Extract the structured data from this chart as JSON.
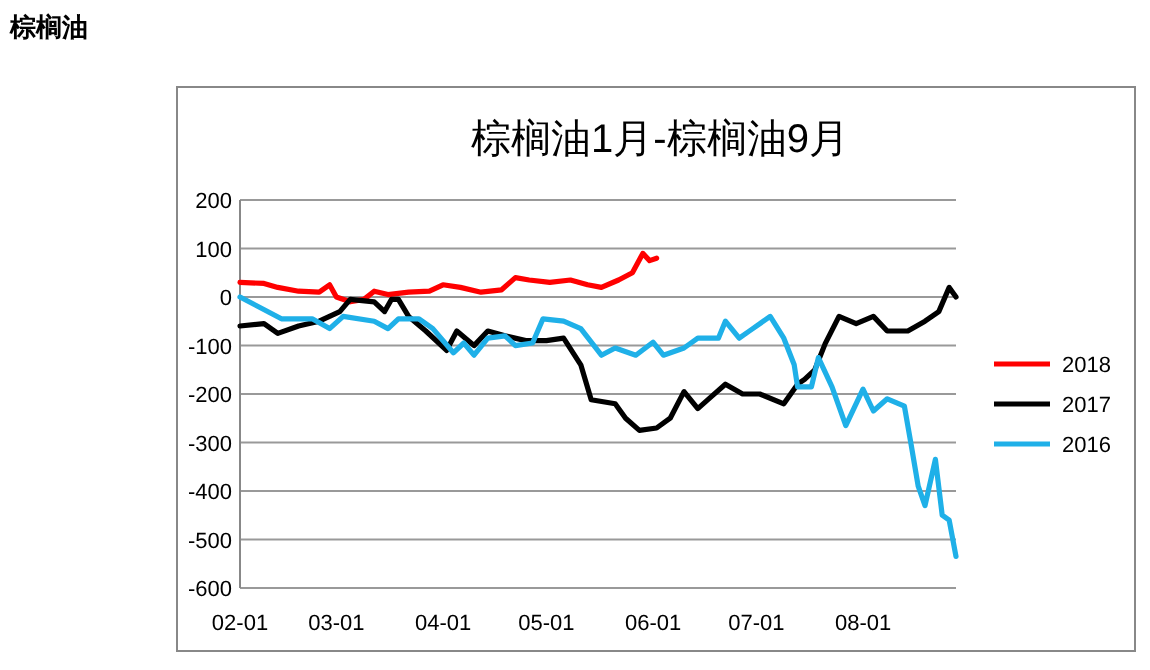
{
  "chart_data": {
    "type": "line",
    "title": "棕榈油1月-棕榈油9月",
    "annotations": [
      "棕榈油"
    ],
    "xlim": [
      "--02-01",
      "--08-28"
    ],
    "xticks": [
      {
        "value": "--02-01",
        "label": "02-01"
      },
      {
        "value": "--03-01",
        "label": "03-01"
      },
      {
        "value": "--04-01",
        "label": "04-01"
      },
      {
        "value": "--05-01",
        "label": "05-01"
      },
      {
        "value": "--06-01",
        "label": "06-01"
      },
      {
        "value": "--07-01",
        "label": "07-01"
      },
      {
        "value": "--08-01",
        "label": "08-01"
      }
    ],
    "ylim": [
      -600,
      200
    ],
    "yticks": [
      -600,
      -500,
      -400,
      -300,
      -200,
      -100,
      0,
      100,
      200
    ],
    "grid": "y",
    "legend": "right",
    "marker": "none",
    "line_style": "solid",
    "series": [
      {
        "name": "2018",
        "color": "#ff0000",
        "x": [
          "--02-01",
          "--02-08",
          "--02-12",
          "--02-18",
          "--02-24",
          "--02-27",
          "--03-01",
          "--03-05",
          "--03-09",
          "--03-12",
          "--03-16",
          "--03-22",
          "--03-28",
          "--04-01",
          "--04-06",
          "--04-12",
          "--04-18",
          "--04-22",
          "--04-26",
          "--05-02",
          "--05-08",
          "--05-13",
          "--05-17",
          "--05-22",
          "--05-26",
          "--05-29",
          "--05-31",
          "--06-02"
        ],
        "values": [
          30,
          28,
          20,
          12,
          10,
          25,
          0,
          -10,
          -5,
          12,
          5,
          10,
          12,
          25,
          20,
          10,
          15,
          40,
          35,
          30,
          35,
          25,
          20,
          35,
          50,
          90,
          75,
          80
        ]
      },
      {
        "name": "2017",
        "color": "#000000",
        "x": [
          "--02-01",
          "--02-08",
          "--02-12",
          "--02-18",
          "--02-24",
          "--03-02",
          "--03-05",
          "--03-12",
          "--03-15",
          "--03-17",
          "--03-19",
          "--03-22",
          "--03-27",
          "--04-02",
          "--04-05",
          "--04-10",
          "--04-14",
          "--04-19",
          "--04-25",
          "--05-01",
          "--05-06",
          "--05-11",
          "--05-14",
          "--05-21",
          "--05-24",
          "--05-28",
          "--06-02",
          "--06-06",
          "--06-10",
          "--06-14",
          "--06-18",
          "--06-22",
          "--06-27",
          "--07-02",
          "--07-09",
          "--07-13",
          "--07-15",
          "--07-18",
          "--07-21",
          "--07-25",
          "--07-30",
          "--08-04",
          "--08-08",
          "--08-14",
          "--08-19",
          "--08-23",
          "--08-26",
          "--08-28"
        ],
        "values": [
          -60,
          -55,
          -75,
          -60,
          -50,
          -30,
          -5,
          -10,
          -30,
          -5,
          -5,
          -40,
          -70,
          -110,
          -70,
          -100,
          -70,
          -80,
          -90,
          -90,
          -85,
          -140,
          -212,
          -220,
          -250,
          -275,
          -270,
          -250,
          -195,
          -230,
          -205,
          -180,
          -200,
          -200,
          -220,
          -180,
          -170,
          -150,
          -96,
          -40,
          -55,
          -40,
          -70,
          -70,
          -50,
          -30,
          20,
          0
        ]
      },
      {
        "name": "2016",
        "color": "#1fb0e8",
        "x": [
          "--02-01",
          "--02-13",
          "--02-22",
          "--02-27",
          "--03-03",
          "--03-12",
          "--03-16",
          "--03-19",
          "--03-25",
          "--03-29",
          "--04-04",
          "--04-07",
          "--04-10",
          "--04-14",
          "--04-19",
          "--04-22",
          "--04-27",
          "--04-30",
          "--05-06",
          "--05-11",
          "--05-17",
          "--05-21",
          "--05-27",
          "--06-01",
          "--06-04",
          "--06-10",
          "--06-14",
          "--06-20",
          "--06-22",
          "--06-26",
          "--06-29",
          "--07-05",
          "--07-09",
          "--07-12",
          "--07-13",
          "--07-17",
          "--07-19",
          "--07-23",
          "--07-27",
          "--08-01",
          "--08-04",
          "--08-08",
          "--08-13",
          "--08-15",
          "--08-17",
          "--08-19",
          "--08-22",
          "--08-24",
          "--08-26",
          "--08-28"
        ],
        "values": [
          0,
          -45,
          -45,
          -65,
          -40,
          -50,
          -65,
          -45,
          -45,
          -65,
          -115,
          -95,
          -120,
          -85,
          -80,
          -100,
          -95,
          -45,
          -50,
          -65,
          -120,
          -105,
          -120,
          -93,
          -120,
          -105,
          -85,
          -85,
          -50,
          -85,
          -70,
          -40,
          -85,
          -140,
          -185,
          -185,
          -125,
          -185,
          -265,
          -190,
          -235,
          -210,
          -225,
          -305,
          -390,
          -430,
          -335,
          -450,
          -460,
          -535
        ]
      }
    ]
  }
}
